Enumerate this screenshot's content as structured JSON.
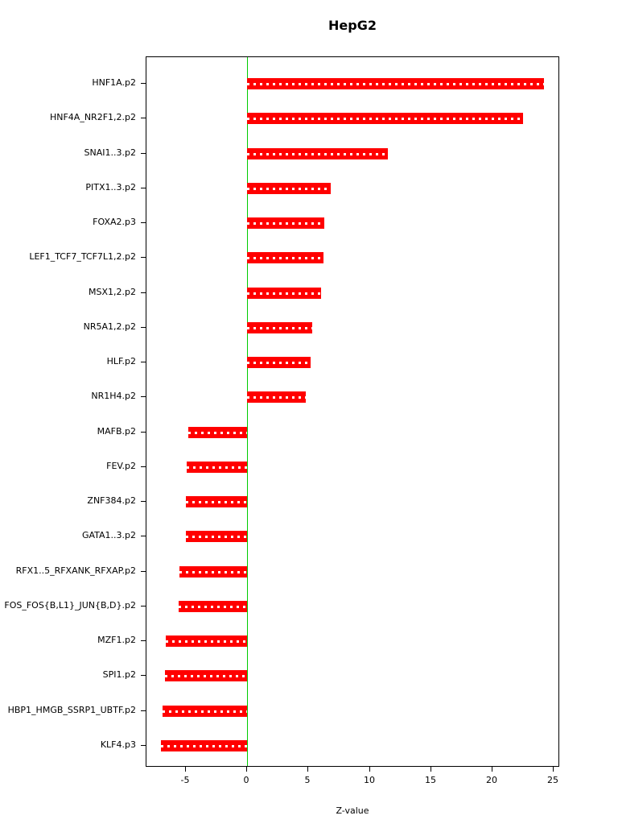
{
  "title": "HepG2",
  "chart_data": {
    "type": "bar",
    "orientation": "horizontal",
    "title": "HepG2",
    "xlabel": "Z-value",
    "ylabel": "",
    "categories": [
      "HNF1A.p2",
      "HNF4A_NR2F1,2.p2",
      "SNAI1..3.p2",
      "PITX1..3.p2",
      "FOXA2.p3",
      "LEF1_TCF7_TCF7L1,2.p2",
      "MSX1,2.p2",
      "NR5A1,2.p2",
      "HLF.p2",
      "NR1H4.p2",
      "MAFB.p2",
      "FEV.p2",
      "ZNF384.p2",
      "GATA1..3.p2",
      "RFX1..5_RFXANK_RFXAP.p2",
      "FOS_FOS{B,L1}_JUN{B,D}.p2",
      "MZF1.p2",
      "SPI1.p2",
      "HBP1_HMGB_SSRP1_UBTF.p2",
      "KLF4.p3"
    ],
    "values": [
      24.2,
      22.5,
      11.5,
      6.8,
      6.3,
      6.2,
      6.0,
      5.3,
      5.2,
      4.8,
      -4.8,
      -4.9,
      -5.0,
      -5.0,
      -5.5,
      -5.6,
      -6.6,
      -6.7,
      -6.9,
      -7.0
    ],
    "xlim": [
      -8.2,
      25.5
    ],
    "xticks": [
      -5,
      0,
      5,
      10,
      15,
      20,
      25
    ],
    "bar_color": "#ff0000",
    "zero_line_color": "#00cc00",
    "grid": false,
    "legend_position": "none"
  }
}
